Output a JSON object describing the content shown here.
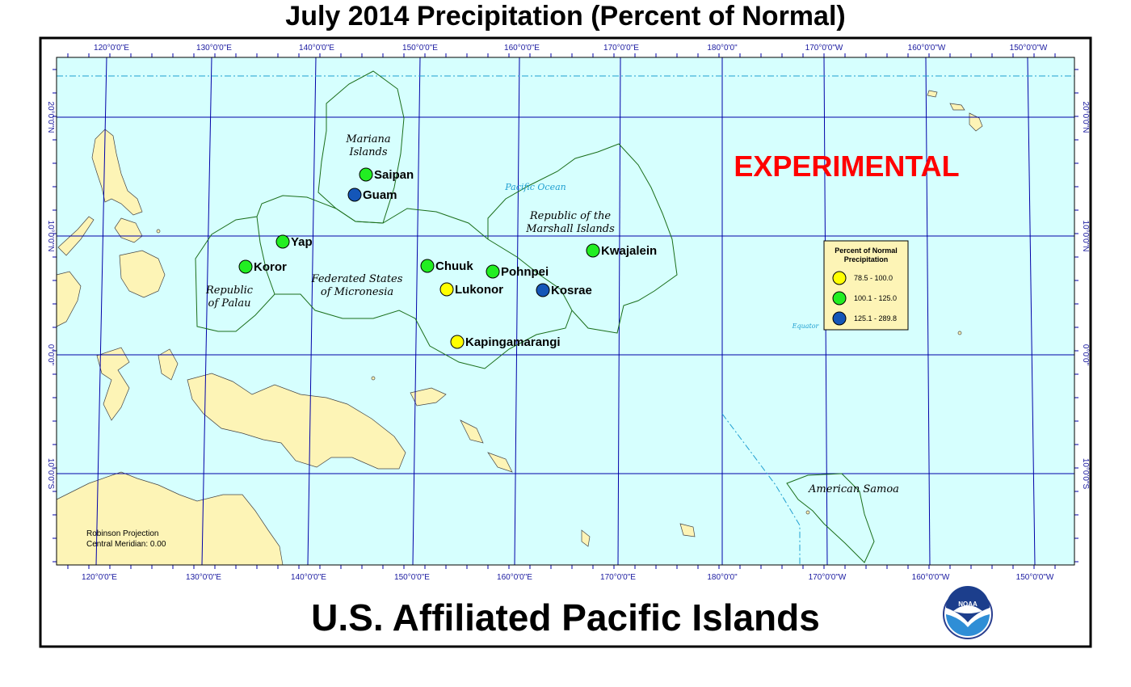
{
  "title": "July 2014 Precipitation (Percent of Normal)",
  "footer_title": "U.S. Affiliated Pacific Islands",
  "experimental_label": "EXPERIMENTAL",
  "projection": {
    "line1": "Robinson Projection",
    "line2": "Central Meridian: 0.00"
  },
  "ocean_labels": {
    "pacific": "Pacific Ocean",
    "equator": "Equator"
  },
  "longitude_labels": [
    "120°0'0\"E",
    "130°0'0\"E",
    "140°0'0\"E",
    "150°0'0\"E",
    "160°0'0\"E",
    "170°0'0\"E",
    "180°0'0\"",
    "170°0'0\"W",
    "160°0'0\"W",
    "150°0'0\"W"
  ],
  "latitude_labels": [
    "20°0'0\"N",
    "10°0'0\"N",
    "0°0'0\"",
    "10°0'0\"S"
  ],
  "regions": {
    "mariana_1": "Mariana",
    "mariana_2": "Islands",
    "marshall_1": "Republic of the",
    "marshall_2": "Marshall Islands",
    "fsm_1": "Federated States",
    "fsm_2": "of Micronesia",
    "palau_1": "Republic",
    "palau_2": "of Palau",
    "samoa": "American Samoa"
  },
  "legend": {
    "title_1": "Percent of Normal",
    "title_2": "Precipitation",
    "items": [
      {
        "label": "78.5 - 100.0",
        "color": "#ffff00"
      },
      {
        "label": "100.1 - 125.0",
        "color": "#22ee22"
      },
      {
        "label": "125.1 - 289.8",
        "color": "#1456b8"
      }
    ]
  },
  "stations": [
    {
      "name": "Saipan",
      "class": 1
    },
    {
      "name": "Guam",
      "class": 2
    },
    {
      "name": "Yap",
      "class": 1
    },
    {
      "name": "Koror",
      "class": 1
    },
    {
      "name": "Chuuk",
      "class": 1
    },
    {
      "name": "Pohnpei",
      "class": 1
    },
    {
      "name": "Lukonor",
      "class": 0
    },
    {
      "name": "Kosrae",
      "class": 2
    },
    {
      "name": "Kwajalein",
      "class": 1
    },
    {
      "name": "Kapingamarangi",
      "class": 0
    }
  ],
  "colors": {
    "ocean": "#d6fffe",
    "land": "#fdf4b6",
    "graticule": "#0000a8",
    "boundary": "#1a6e1a"
  },
  "logo": {
    "text": "NOAA"
  }
}
